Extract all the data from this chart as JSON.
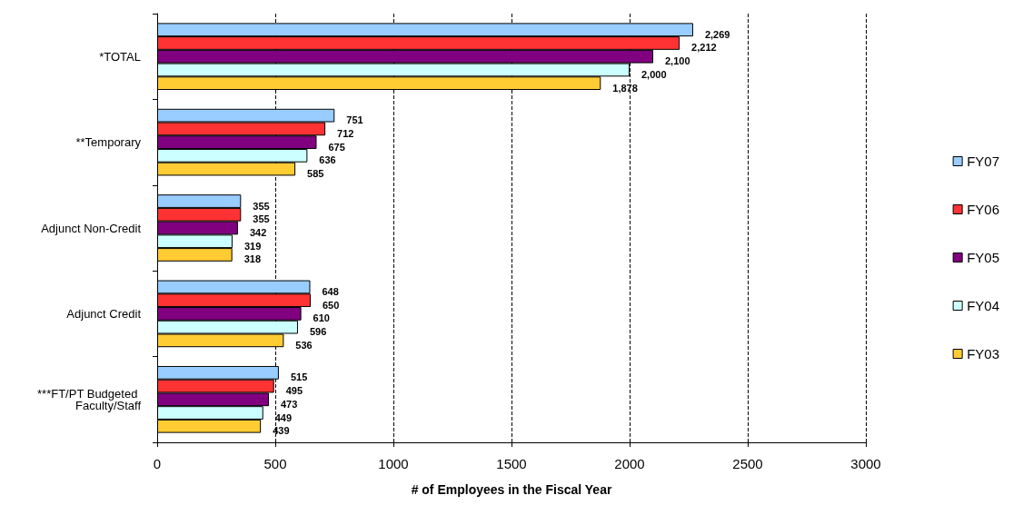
{
  "chart_data": {
    "type": "bar",
    "orientation": "horizontal",
    "xlabel": "# of Employees in the Fiscal Year",
    "categories": [
      "*TOTAL",
      "**Temporary",
      "Adjunct Non-Credit",
      "Adjunct Credit",
      "***FT/PT Budgeted Faculty/Staff"
    ],
    "series": [
      {
        "name": "FY07",
        "color": "#99ccff",
        "values": [
          2269,
          751,
          355,
          648,
          515
        ],
        "value_labels": [
          "2,269",
          "751",
          "355",
          "648",
          "515"
        ]
      },
      {
        "name": "FY06",
        "color": "#ff3333",
        "values": [
          2212,
          712,
          355,
          650,
          495
        ],
        "value_labels": [
          "2,212",
          "712",
          "355",
          "650",
          "495"
        ]
      },
      {
        "name": "FY05",
        "color": "#800080",
        "values": [
          2100,
          675,
          342,
          610,
          473
        ],
        "value_labels": [
          "2,100",
          "675",
          "342",
          "610",
          "473"
        ]
      },
      {
        "name": "FY04",
        "color": "#ccffff",
        "values": [
          2000,
          636,
          319,
          596,
          449
        ],
        "value_labels": [
          "2,000",
          "636",
          "319",
          "596",
          "449"
        ]
      },
      {
        "name": "FY03",
        "color": "#ffcc33",
        "values": [
          1878,
          585,
          318,
          536,
          439
        ],
        "value_labels": [
          "1,878",
          "585",
          "318",
          "536",
          "439"
        ]
      }
    ],
    "xlim": [
      0,
      3000
    ],
    "xticks": [
      0,
      500,
      1000,
      1500,
      2000,
      2500,
      3000
    ],
    "grid": "x",
    "legend": "right"
  }
}
